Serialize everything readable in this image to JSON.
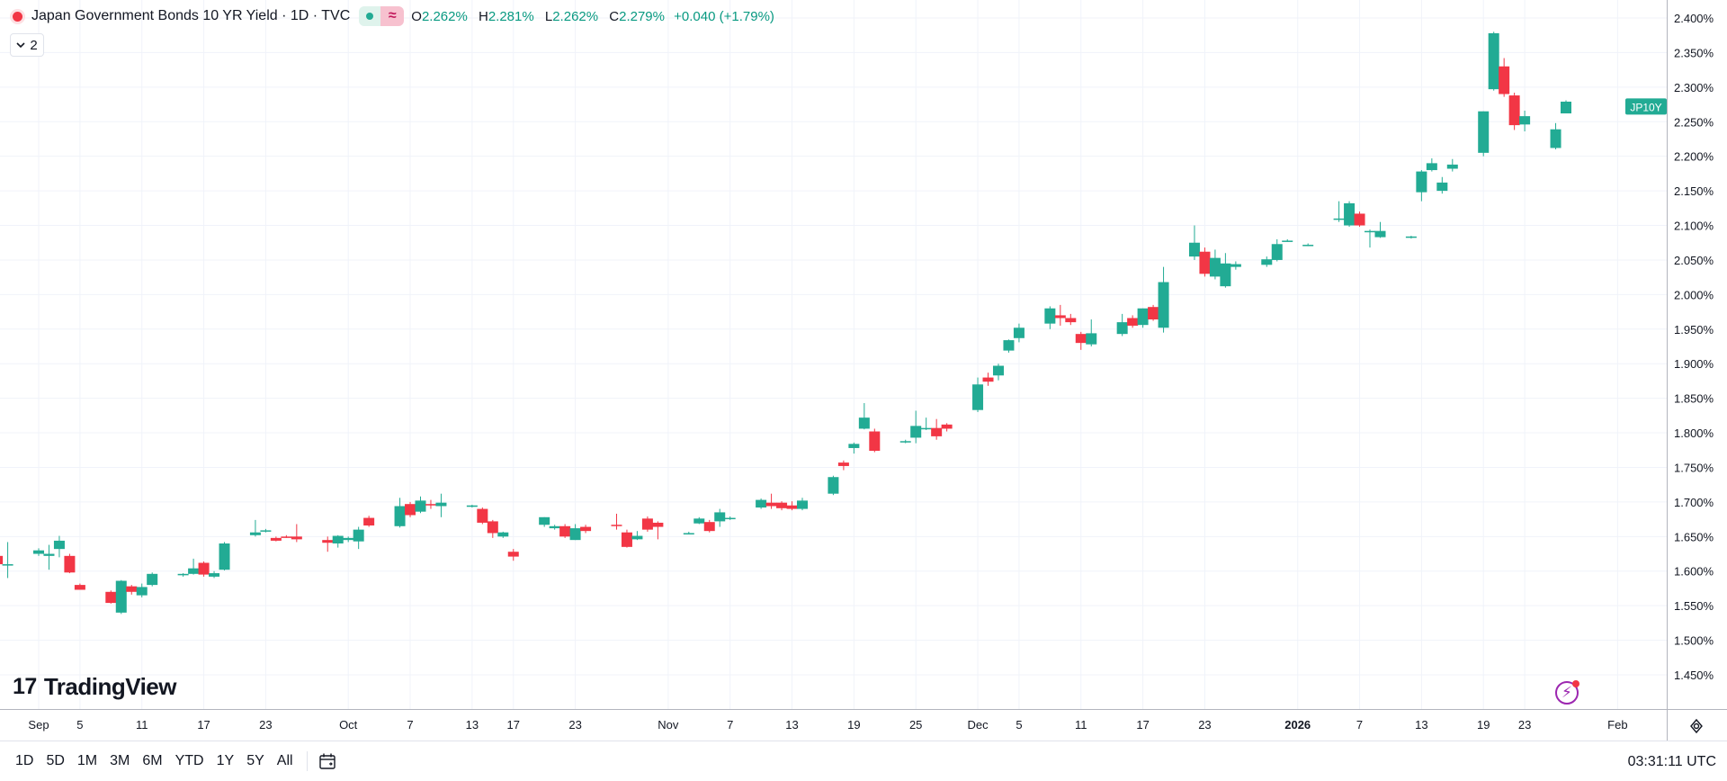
{
  "header": {
    "title": "Japan Government Bonds 10 YR Yield · 1D · TVC",
    "status_symbol": "≈",
    "ohlc": {
      "o_key": "O",
      "o_val": "2.262%",
      "h_key": "H",
      "h_val": "2.281%",
      "l_key": "L",
      "l_val": "2.262%",
      "c_key": "C",
      "c_val": "2.279%",
      "change": "+0.040 (+1.79%)"
    },
    "collapse_label": "2",
    "collapse_icon": "chevron-down-icon"
  },
  "brand": {
    "name": "TradingView",
    "mark": "17"
  },
  "toolbar": {
    "ranges": [
      "1D",
      "5D",
      "1M",
      "3M",
      "6M",
      "YTD",
      "1Y",
      "5Y",
      "All"
    ],
    "clock": "03:31:11 UTC"
  },
  "colors": {
    "up": "#22ab94",
    "down": "#f23645",
    "grid": "#f0f3fa",
    "axis_text": "#131722",
    "price_label": "#22ab94"
  },
  "chart_data": {
    "type": "candlestick",
    "symbol_label": "JP10Y",
    "last_price": 2.279,
    "y_unit": "%",
    "ylim": [
      1.405,
      2.42
    ],
    "y_ticks": [
      "1.450%",
      "1.500%",
      "1.550%",
      "1.600%",
      "1.650%",
      "1.700%",
      "1.750%",
      "1.800%",
      "1.850%",
      "1.900%",
      "1.950%",
      "2.000%",
      "2.050%",
      "2.100%",
      "2.150%",
      "2.200%",
      "2.250%",
      "2.300%",
      "2.350%",
      "2.400%"
    ],
    "x_labels": [
      {
        "date": "2025-09-01",
        "label": "Sep"
      },
      {
        "date": "2025-09-05",
        "label": "5"
      },
      {
        "date": "2025-09-11",
        "label": "11"
      },
      {
        "date": "2025-09-17",
        "label": "17"
      },
      {
        "date": "2025-09-23",
        "label": "23"
      },
      {
        "date": "2025-10-01",
        "label": "Oct"
      },
      {
        "date": "2025-10-07",
        "label": "7"
      },
      {
        "date": "2025-10-13",
        "label": "13"
      },
      {
        "date": "2025-10-17",
        "label": "17"
      },
      {
        "date": "2025-10-23",
        "label": "23"
      },
      {
        "date": "2025-11-01",
        "label": "Nov"
      },
      {
        "date": "2025-11-07",
        "label": "7"
      },
      {
        "date": "2025-11-13",
        "label": "13"
      },
      {
        "date": "2025-11-19",
        "label": "19"
      },
      {
        "date": "2025-11-25",
        "label": "25"
      },
      {
        "date": "2025-12-01",
        "label": "Dec"
      },
      {
        "date": "2025-12-05",
        "label": "5"
      },
      {
        "date": "2025-12-11",
        "label": "11"
      },
      {
        "date": "2025-12-17",
        "label": "17"
      },
      {
        "date": "2025-12-23",
        "label": "23"
      },
      {
        "date": "2026-01-01",
        "label": "2026"
      },
      {
        "date": "2026-01-07",
        "label": "7"
      },
      {
        "date": "2026-01-13",
        "label": "13"
      },
      {
        "date": "2026-01-19",
        "label": "19"
      },
      {
        "date": "2026-01-23",
        "label": "23"
      },
      {
        "date": "2026-02-01",
        "label": "Feb"
      }
    ],
    "candles": [
      {
        "date": "2025-08-28",
        "o": 1.622,
        "h": 1.624,
        "l": 1.606,
        "c": 1.61
      },
      {
        "date": "2025-08-29",
        "o": 1.608,
        "h": 1.642,
        "l": 1.59,
        "c": 1.61
      },
      {
        "date": "2025-09-01",
        "o": 1.625,
        "h": 1.633,
        "l": 1.622,
        "c": 1.63
      },
      {
        "date": "2025-09-02",
        "o": 1.622,
        "h": 1.638,
        "l": 1.602,
        "c": 1.625
      },
      {
        "date": "2025-09-03",
        "o": 1.632,
        "h": 1.651,
        "l": 1.62,
        "c": 1.644
      },
      {
        "date": "2025-09-04",
        "o": 1.622,
        "h": 1.625,
        "l": 1.597,
        "c": 1.598
      },
      {
        "date": "2025-09-05",
        "o": 1.58,
        "h": 1.582,
        "l": 1.573,
        "c": 1.573
      },
      {
        "date": "2025-09-08",
        "o": 1.57,
        "h": 1.572,
        "l": 1.553,
        "c": 1.554
      },
      {
        "date": "2025-09-09",
        "o": 1.54,
        "h": 1.587,
        "l": 1.538,
        "c": 1.586
      },
      {
        "date": "2025-09-10",
        "o": 1.578,
        "h": 1.58,
        "l": 1.566,
        "c": 1.57
      },
      {
        "date": "2025-09-11",
        "o": 1.565,
        "h": 1.582,
        "l": 1.562,
        "c": 1.577
      },
      {
        "date": "2025-09-12",
        "o": 1.58,
        "h": 1.598,
        "l": 1.578,
        "c": 1.596
      },
      {
        "date": "2025-09-15",
        "o": 1.594,
        "h": 1.597,
        "l": 1.592,
        "c": 1.596
      },
      {
        "date": "2025-09-16",
        "o": 1.596,
        "h": 1.618,
        "l": 1.595,
        "c": 1.604
      },
      {
        "date": "2025-09-17",
        "o": 1.612,
        "h": 1.614,
        "l": 1.592,
        "c": 1.595
      },
      {
        "date": "2025-09-18",
        "o": 1.592,
        "h": 1.6,
        "l": 1.59,
        "c": 1.597
      },
      {
        "date": "2025-09-19",
        "o": 1.602,
        "h": 1.642,
        "l": 1.601,
        "c": 1.64
      },
      {
        "date": "2025-09-22",
        "o": 1.652,
        "h": 1.674,
        "l": 1.65,
        "c": 1.656
      },
      {
        "date": "2025-09-23",
        "o": 1.658,
        "h": 1.661,
        "l": 1.656,
        "c": 1.659
      },
      {
        "date": "2025-09-24",
        "o": 1.648,
        "h": 1.65,
        "l": 1.643,
        "c": 1.644
      },
      {
        "date": "2025-09-25",
        "o": 1.65,
        "h": 1.652,
        "l": 1.648,
        "c": 1.648
      },
      {
        "date": "2025-09-26",
        "o": 1.65,
        "h": 1.668,
        "l": 1.642,
        "c": 1.646
      },
      {
        "date": "2025-09-29",
        "o": 1.645,
        "h": 1.65,
        "l": 1.628,
        "c": 1.641
      },
      {
        "date": "2025-09-30",
        "o": 1.64,
        "h": 1.652,
        "l": 1.634,
        "c": 1.651
      },
      {
        "date": "2025-10-01",
        "o": 1.645,
        "h": 1.65,
        "l": 1.642,
        "c": 1.648
      },
      {
        "date": "2025-10-02",
        "o": 1.643,
        "h": 1.664,
        "l": 1.632,
        "c": 1.66
      },
      {
        "date": "2025-10-03",
        "o": 1.677,
        "h": 1.68,
        "l": 1.664,
        "c": 1.666
      },
      {
        "date": "2025-10-06",
        "o": 1.665,
        "h": 1.706,
        "l": 1.663,
        "c": 1.694
      },
      {
        "date": "2025-10-07",
        "o": 1.697,
        "h": 1.7,
        "l": 1.678,
        "c": 1.681
      },
      {
        "date": "2025-10-08",
        "o": 1.686,
        "h": 1.708,
        "l": 1.684,
        "c": 1.702
      },
      {
        "date": "2025-10-09",
        "o": 1.697,
        "h": 1.703,
        "l": 1.69,
        "c": 1.695
      },
      {
        "date": "2025-10-10",
        "o": 1.694,
        "h": 1.712,
        "l": 1.678,
        "c": 1.699
      },
      {
        "date": "2025-10-13",
        "o": 1.693,
        "h": 1.696,
        "l": 1.692,
        "c": 1.695
      },
      {
        "date": "2025-10-14",
        "o": 1.69,
        "h": 1.692,
        "l": 1.668,
        "c": 1.67
      },
      {
        "date": "2025-10-15",
        "o": 1.672,
        "h": 1.674,
        "l": 1.648,
        "c": 1.655
      },
      {
        "date": "2025-10-16",
        "o": 1.65,
        "h": 1.657,
        "l": 1.648,
        "c": 1.656
      },
      {
        "date": "2025-10-17",
        "o": 1.628,
        "h": 1.632,
        "l": 1.615,
        "c": 1.621
      },
      {
        "date": "2025-10-20",
        "o": 1.667,
        "h": 1.678,
        "l": 1.664,
        "c": 1.678
      },
      {
        "date": "2025-10-21",
        "o": 1.662,
        "h": 1.667,
        "l": 1.66,
        "c": 1.665
      },
      {
        "date": "2025-10-22",
        "o": 1.665,
        "h": 1.668,
        "l": 1.648,
        "c": 1.65
      },
      {
        "date": "2025-10-23",
        "o": 1.645,
        "h": 1.668,
        "l": 1.645,
        "c": 1.662
      },
      {
        "date": "2025-10-24",
        "o": 1.664,
        "h": 1.667,
        "l": 1.655,
        "c": 1.658
      },
      {
        "date": "2025-10-27",
        "o": 1.667,
        "h": 1.683,
        "l": 1.66,
        "c": 1.666
      },
      {
        "date": "2025-10-28",
        "o": 1.656,
        "h": 1.66,
        "l": 1.634,
        "c": 1.635
      },
      {
        "date": "2025-10-29",
        "o": 1.646,
        "h": 1.658,
        "l": 1.645,
        "c": 1.651
      },
      {
        "date": "2025-10-30",
        "o": 1.676,
        "h": 1.679,
        "l": 1.657,
        "c": 1.66
      },
      {
        "date": "2025-10-31",
        "o": 1.67,
        "h": 1.672,
        "l": 1.646,
        "c": 1.664
      },
      {
        "date": "2025-11-03",
        "o": 1.655,
        "h": 1.657,
        "l": 1.653,
        "c": 1.655
      },
      {
        "date": "2025-11-04",
        "o": 1.669,
        "h": 1.678,
        "l": 1.668,
        "c": 1.676
      },
      {
        "date": "2025-11-05",
        "o": 1.671,
        "h": 1.674,
        "l": 1.656,
        "c": 1.658
      },
      {
        "date": "2025-11-06",
        "o": 1.672,
        "h": 1.69,
        "l": 1.664,
        "c": 1.685
      },
      {
        "date": "2025-11-07",
        "o": 1.676,
        "h": 1.679,
        "l": 1.674,
        "c": 1.677
      },
      {
        "date": "2025-11-10",
        "o": 1.692,
        "h": 1.705,
        "l": 1.69,
        "c": 1.703
      },
      {
        "date": "2025-11-11",
        "o": 1.699,
        "h": 1.712,
        "l": 1.69,
        "c": 1.694
      },
      {
        "date": "2025-11-12",
        "o": 1.699,
        "h": 1.701,
        "l": 1.688,
        "c": 1.691
      },
      {
        "date": "2025-11-13",
        "o": 1.695,
        "h": 1.701,
        "l": 1.688,
        "c": 1.69
      },
      {
        "date": "2025-11-14",
        "o": 1.69,
        "h": 1.706,
        "l": 1.688,
        "c": 1.702
      },
      {
        "date": "2025-11-17",
        "o": 1.712,
        "h": 1.738,
        "l": 1.71,
        "c": 1.736
      },
      {
        "date": "2025-11-18",
        "o": 1.757,
        "h": 1.76,
        "l": 1.746,
        "c": 1.752
      },
      {
        "date": "2025-11-19",
        "o": 1.778,
        "h": 1.786,
        "l": 1.77,
        "c": 1.784
      },
      {
        "date": "2025-11-20",
        "o": 1.806,
        "h": 1.843,
        "l": 1.805,
        "c": 1.822
      },
      {
        "date": "2025-11-21",
        "o": 1.802,
        "h": 1.806,
        "l": 1.772,
        "c": 1.774
      },
      {
        "date": "2025-11-24",
        "o": 1.787,
        "h": 1.79,
        "l": 1.785,
        "c": 1.788
      },
      {
        "date": "2025-11-25",
        "o": 1.793,
        "h": 1.832,
        "l": 1.785,
        "c": 1.81
      },
      {
        "date": "2025-11-26",
        "o": 1.806,
        "h": 1.822,
        "l": 1.804,
        "c": 1.807
      },
      {
        "date": "2025-11-27",
        "o": 1.807,
        "h": 1.82,
        "l": 1.79,
        "c": 1.795
      },
      {
        "date": "2025-11-28",
        "o": 1.812,
        "h": 1.814,
        "l": 1.802,
        "c": 1.806
      },
      {
        "date": "2025-12-01",
        "o": 1.833,
        "h": 1.88,
        "l": 1.83,
        "c": 1.87
      },
      {
        "date": "2025-12-02",
        "o": 1.88,
        "h": 1.887,
        "l": 1.868,
        "c": 1.874
      },
      {
        "date": "2025-12-03",
        "o": 1.883,
        "h": 1.9,
        "l": 1.876,
        "c": 1.897
      },
      {
        "date": "2025-12-04",
        "o": 1.919,
        "h": 1.935,
        "l": 1.916,
        "c": 1.934
      },
      {
        "date": "2025-12-05",
        "o": 1.937,
        "h": 1.958,
        "l": 1.931,
        "c": 1.952
      },
      {
        "date": "2025-12-08",
        "o": 1.958,
        "h": 1.983,
        "l": 1.95,
        "c": 1.98
      },
      {
        "date": "2025-12-09",
        "o": 1.97,
        "h": 1.985,
        "l": 1.955,
        "c": 1.966
      },
      {
        "date": "2025-12-10",
        "o": 1.966,
        "h": 1.972,
        "l": 1.956,
        "c": 1.96
      },
      {
        "date": "2025-12-11",
        "o": 1.943,
        "h": 1.946,
        "l": 1.92,
        "c": 1.93
      },
      {
        "date": "2025-12-12",
        "o": 1.928,
        "h": 1.964,
        "l": 1.925,
        "c": 1.944
      },
      {
        "date": "2025-12-15",
        "o": 1.943,
        "h": 1.972,
        "l": 1.94,
        "c": 1.96
      },
      {
        "date": "2025-12-16",
        "o": 1.966,
        "h": 1.97,
        "l": 1.952,
        "c": 1.955
      },
      {
        "date": "2025-12-17",
        "o": 1.956,
        "h": 1.98,
        "l": 1.952,
        "c": 1.98
      },
      {
        "date": "2025-12-18",
        "o": 1.982,
        "h": 1.985,
        "l": 1.962,
        "c": 1.964
      },
      {
        "date": "2025-12-19",
        "o": 1.952,
        "h": 2.04,
        "l": 1.945,
        "c": 2.018
      },
      {
        "date": "2025-12-22",
        "o": 2.055,
        "h": 2.1,
        "l": 2.05,
        "c": 2.075
      },
      {
        "date": "2025-12-23",
        "o": 2.062,
        "h": 2.068,
        "l": 2.026,
        "c": 2.03
      },
      {
        "date": "2025-12-24",
        "o": 2.026,
        "h": 2.065,
        "l": 2.022,
        "c": 2.053
      },
      {
        "date": "2025-12-25",
        "o": 2.012,
        "h": 2.06,
        "l": 2.01,
        "c": 2.045
      },
      {
        "date": "2025-12-26",
        "o": 2.04,
        "h": 2.048,
        "l": 2.036,
        "c": 2.044
      },
      {
        "date": "2025-12-29",
        "o": 2.043,
        "h": 2.055,
        "l": 2.04,
        "c": 2.051
      },
      {
        "date": "2025-12-30",
        "o": 2.05,
        "h": 2.08,
        "l": 2.048,
        "c": 2.073
      },
      {
        "date": "2025-12-31",
        "o": 2.078,
        "h": 2.08,
        "l": 2.077,
        "c": 2.078
      },
      {
        "date": "2026-01-02",
        "o": 2.072,
        "h": 2.074,
        "l": 2.07,
        "c": 2.072
      },
      {
        "date": "2026-01-05",
        "o": 2.11,
        "h": 2.135,
        "l": 2.105,
        "c": 2.11
      },
      {
        "date": "2026-01-06",
        "o": 2.1,
        "h": 2.135,
        "l": 2.098,
        "c": 2.132
      },
      {
        "date": "2026-01-07",
        "o": 2.117,
        "h": 2.12,
        "l": 2.098,
        "c": 2.1
      },
      {
        "date": "2026-01-08",
        "o": 2.092,
        "h": 2.094,
        "l": 2.068,
        "c": 2.092
      },
      {
        "date": "2026-01-09",
        "o": 2.083,
        "h": 2.105,
        "l": 2.082,
        "c": 2.092
      },
      {
        "date": "2026-01-12",
        "o": 2.083,
        "h": 2.085,
        "l": 2.081,
        "c": 2.084
      },
      {
        "date": "2026-01-13",
        "o": 2.148,
        "h": 2.18,
        "l": 2.135,
        "c": 2.178
      },
      {
        "date": "2026-01-14",
        "o": 2.18,
        "h": 2.197,
        "l": 2.178,
        "c": 2.19
      },
      {
        "date": "2026-01-15",
        "o": 2.15,
        "h": 2.17,
        "l": 2.146,
        "c": 2.162
      },
      {
        "date": "2026-01-16",
        "o": 2.182,
        "h": 2.196,
        "l": 2.178,
        "c": 2.188
      },
      {
        "date": "2026-01-19",
        "o": 2.205,
        "h": 2.265,
        "l": 2.2,
        "c": 2.265
      },
      {
        "date": "2026-01-20",
        "o": 2.297,
        "h": 2.38,
        "l": 2.295,
        "c": 2.378
      },
      {
        "date": "2026-01-21",
        "o": 2.33,
        "h": 2.342,
        "l": 2.286,
        "c": 2.29
      },
      {
        "date": "2026-01-22",
        "o": 2.288,
        "h": 2.292,
        "l": 2.238,
        "c": 2.245
      },
      {
        "date": "2026-01-23",
        "o": 2.246,
        "h": 2.266,
        "l": 2.236,
        "c": 2.258
      },
      {
        "date": "2026-01-26",
        "o": 2.212,
        "h": 2.248,
        "l": 2.21,
        "c": 2.239
      },
      {
        "date": "2026-01-27",
        "o": 2.262,
        "h": 2.281,
        "l": 2.262,
        "c": 2.279
      }
    ]
  }
}
